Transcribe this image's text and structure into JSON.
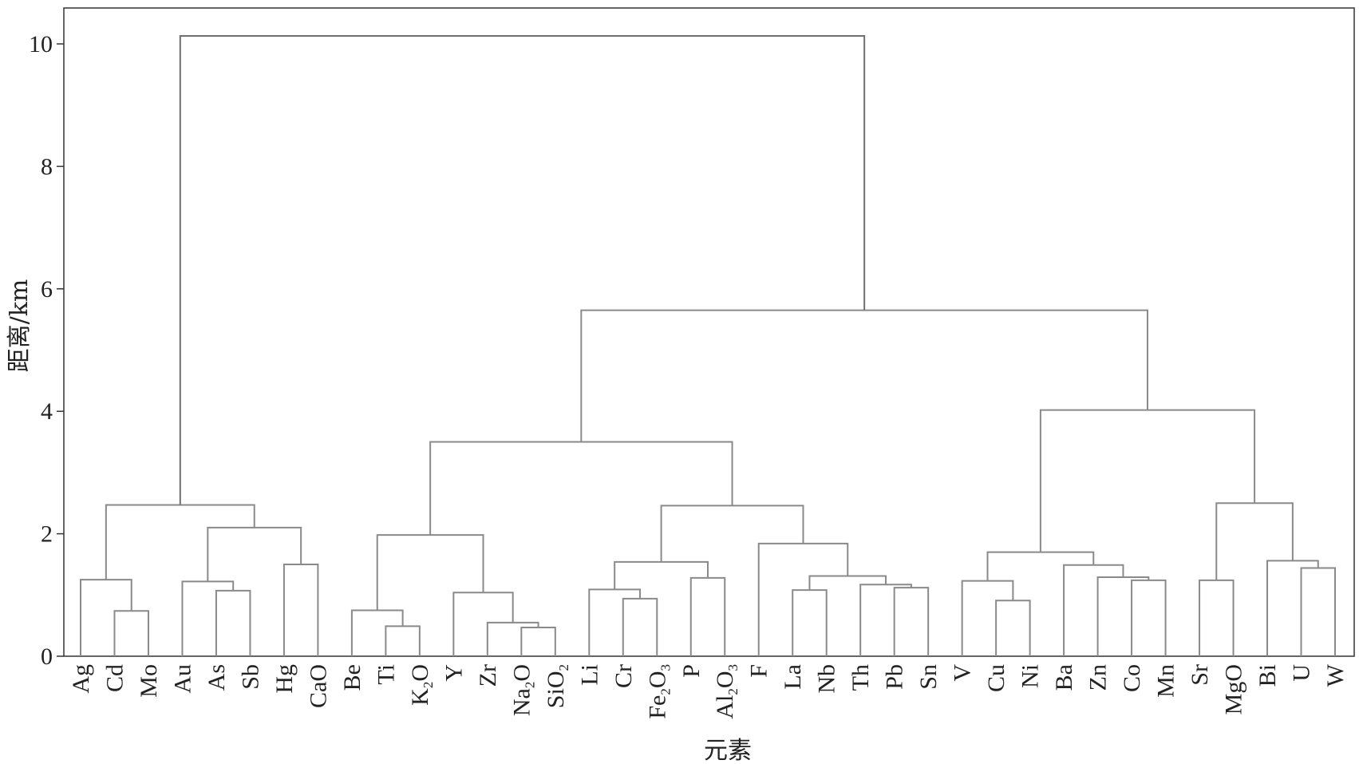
{
  "chart_data": {
    "type": "dendrogram",
    "title": "",
    "xlabel": "元素",
    "ylabel": "距离/km",
    "ylim": [
      0,
      10.6
    ],
    "yticks": [
      0,
      2,
      4,
      6,
      8,
      10
    ],
    "grid": false,
    "leaves": [
      {
        "text": "Ag"
      },
      {
        "text": "Cd"
      },
      {
        "text": "Mo"
      },
      {
        "text": "Au"
      },
      {
        "text": "As"
      },
      {
        "text": "Sb"
      },
      {
        "text": "Hg"
      },
      {
        "text": "CaO"
      },
      {
        "text": "Be"
      },
      {
        "text": "Ti"
      },
      {
        "text": "K",
        "sub": "2",
        "tail": "O"
      },
      {
        "text": "Y"
      },
      {
        "text": "Zr"
      },
      {
        "text": "Na",
        "sub": "2",
        "tail": "O"
      },
      {
        "text": "SiO",
        "sub": "2",
        "tail": ""
      },
      {
        "text": "Li"
      },
      {
        "text": "Cr"
      },
      {
        "text": "Fe",
        "sub": "2",
        "tail": "O",
        "sub2": "3"
      },
      {
        "text": "P"
      },
      {
        "text": "Al",
        "sub": "2",
        "tail": "O",
        "sub2": "3"
      },
      {
        "text": "F"
      },
      {
        "text": "La"
      },
      {
        "text": "Nb"
      },
      {
        "text": "Th"
      },
      {
        "text": "Pb"
      },
      {
        "text": "Sn"
      },
      {
        "text": "V"
      },
      {
        "text": "Cu"
      },
      {
        "text": "Ni"
      },
      {
        "text": "Ba"
      },
      {
        "text": "Zn"
      },
      {
        "text": "Co"
      },
      {
        "text": "Mn"
      },
      {
        "text": "Sr"
      },
      {
        "text": "MgO"
      },
      {
        "text": "Bi"
      },
      {
        "text": "U"
      },
      {
        "text": "W"
      }
    ],
    "merges": [
      {
        "a": 1,
        "b": 2,
        "h": 0.74
      },
      {
        "a": 0,
        "b": "m0",
        "h": 1.25
      },
      {
        "a": 4,
        "b": 5,
        "h": 1.07
      },
      {
        "a": 3,
        "b": "m2",
        "h": 1.22
      },
      {
        "a": 6,
        "b": 7,
        "h": 1.5
      },
      {
        "a": "m3",
        "b": "m4",
        "h": 2.1
      },
      {
        "a": "m1",
        "b": "m5",
        "h": 2.47
      },
      {
        "a": 9,
        "b": 10,
        "h": 0.49
      },
      {
        "a": 8,
        "b": "m7",
        "h": 0.75
      },
      {
        "a": 13,
        "b": 14,
        "h": 0.47
      },
      {
        "a": 12,
        "b": "m9",
        "h": 0.55
      },
      {
        "a": 11,
        "b": "m10",
        "h": 1.04
      },
      {
        "a": "m8",
        "b": "m11",
        "h": 1.98
      },
      {
        "a": 16,
        "b": 17,
        "h": 0.94
      },
      {
        "a": 15,
        "b": "m13",
        "h": 1.09
      },
      {
        "a": 18,
        "b": 19,
        "h": 1.28
      },
      {
        "a": "m14",
        "b": "m15",
        "h": 1.54
      },
      {
        "a": 21,
        "b": 22,
        "h": 1.08
      },
      {
        "a": 24,
        "b": 25,
        "h": 1.12
      },
      {
        "a": 23,
        "b": "m18",
        "h": 1.17
      },
      {
        "a": "m17",
        "b": "m19",
        "h": 1.31
      },
      {
        "a": 20,
        "b": "m20",
        "h": 1.84
      },
      {
        "a": "m16",
        "b": "m21",
        "h": 2.46
      },
      {
        "a": "m12",
        "b": "m22",
        "h": 3.5
      },
      {
        "a": 27,
        "b": 28,
        "h": 0.91
      },
      {
        "a": 26,
        "b": "m24",
        "h": 1.23
      },
      {
        "a": 31,
        "b": 32,
        "h": 1.24
      },
      {
        "a": 30,
        "b": "m26",
        "h": 1.29
      },
      {
        "a": 29,
        "b": "m27",
        "h": 1.49
      },
      {
        "a": "m25",
        "b": "m28",
        "h": 1.7
      },
      {
        "a": 33,
        "b": 34,
        "h": 1.24
      },
      {
        "a": 36,
        "b": 37,
        "h": 1.44
      },
      {
        "a": 35,
        "b": "m31",
        "h": 1.56
      },
      {
        "a": "m30",
        "b": "m32",
        "h": 2.5
      },
      {
        "a": "m29",
        "b": "m33",
        "h": 4.02
      },
      {
        "a": "m23",
        "b": "m34",
        "h": 5.65
      },
      {
        "a": "m6",
        "b": "m35",
        "h": 10.13
      }
    ]
  }
}
